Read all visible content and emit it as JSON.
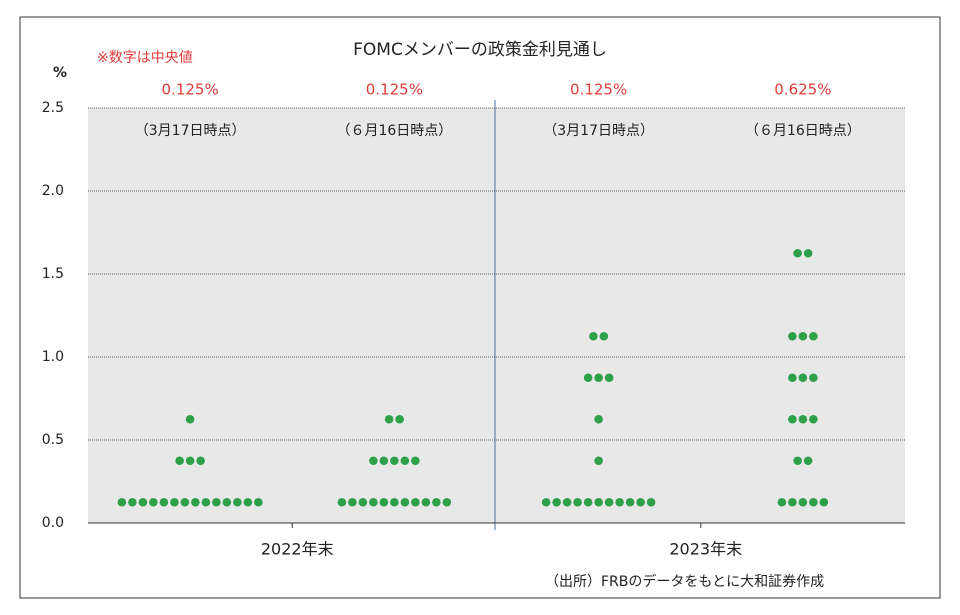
{
  "chart_data": {
    "type": "dot",
    "title": "FOMCメンバーの政策金利見通し",
    "note": "※数字は中央値",
    "y_label": "%",
    "source": "（出所）FRBのデータをもとに大和証券作成",
    "ylim": [
      0,
      2.5
    ],
    "yticks": [
      {
        "value": 0,
        "label": "0.0"
      },
      0.5,
      {
        "value": 1,
        "label": "1.0"
      },
      1.5,
      {
        "value": 2,
        "label": "2.0"
      },
      2.5
    ],
    "grid": true,
    "color": "#2ea04a",
    "median_color": "#e03c3c",
    "groups": [
      {
        "category": "2022年末",
        "panels": [
          {
            "header": "（3月17日時点）",
            "median": 0.125,
            "median_label": "0.125%",
            "values": [
              0.125,
              0.125,
              0.125,
              0.125,
              0.125,
              0.125,
              0.125,
              0.125,
              0.125,
              0.125,
              0.125,
              0.125,
              0.125,
              0.125,
              0.375,
              0.375,
              0.375,
              0.625
            ]
          },
          {
            "header": "（６月16日時点）",
            "median": 0.125,
            "median_label": "0.125%",
            "values": [
              0.125,
              0.125,
              0.125,
              0.125,
              0.125,
              0.125,
              0.125,
              0.125,
              0.125,
              0.125,
              0.125,
              0.375,
              0.375,
              0.375,
              0.375,
              0.375,
              0.625,
              0.625
            ]
          }
        ]
      },
      {
        "category": "2023年末",
        "panels": [
          {
            "header": "（3月17日時点）",
            "median": 0.125,
            "median_label": "0.125%",
            "values": [
              0.125,
              0.125,
              0.125,
              0.125,
              0.125,
              0.125,
              0.125,
              0.125,
              0.125,
              0.125,
              0.125,
              0.375,
              0.625,
              0.875,
              0.875,
              0.875,
              1.125,
              1.125
            ]
          },
          {
            "header": "（６月16日時点）",
            "median": 0.625,
            "median_label": "0.625%",
            "values": [
              0.125,
              0.125,
              0.125,
              0.125,
              0.125,
              0.375,
              0.375,
              0.625,
              0.625,
              0.625,
              0.875,
              0.875,
              0.875,
              1.125,
              1.125,
              1.125,
              1.625,
              1.625
            ]
          }
        ]
      }
    ]
  }
}
